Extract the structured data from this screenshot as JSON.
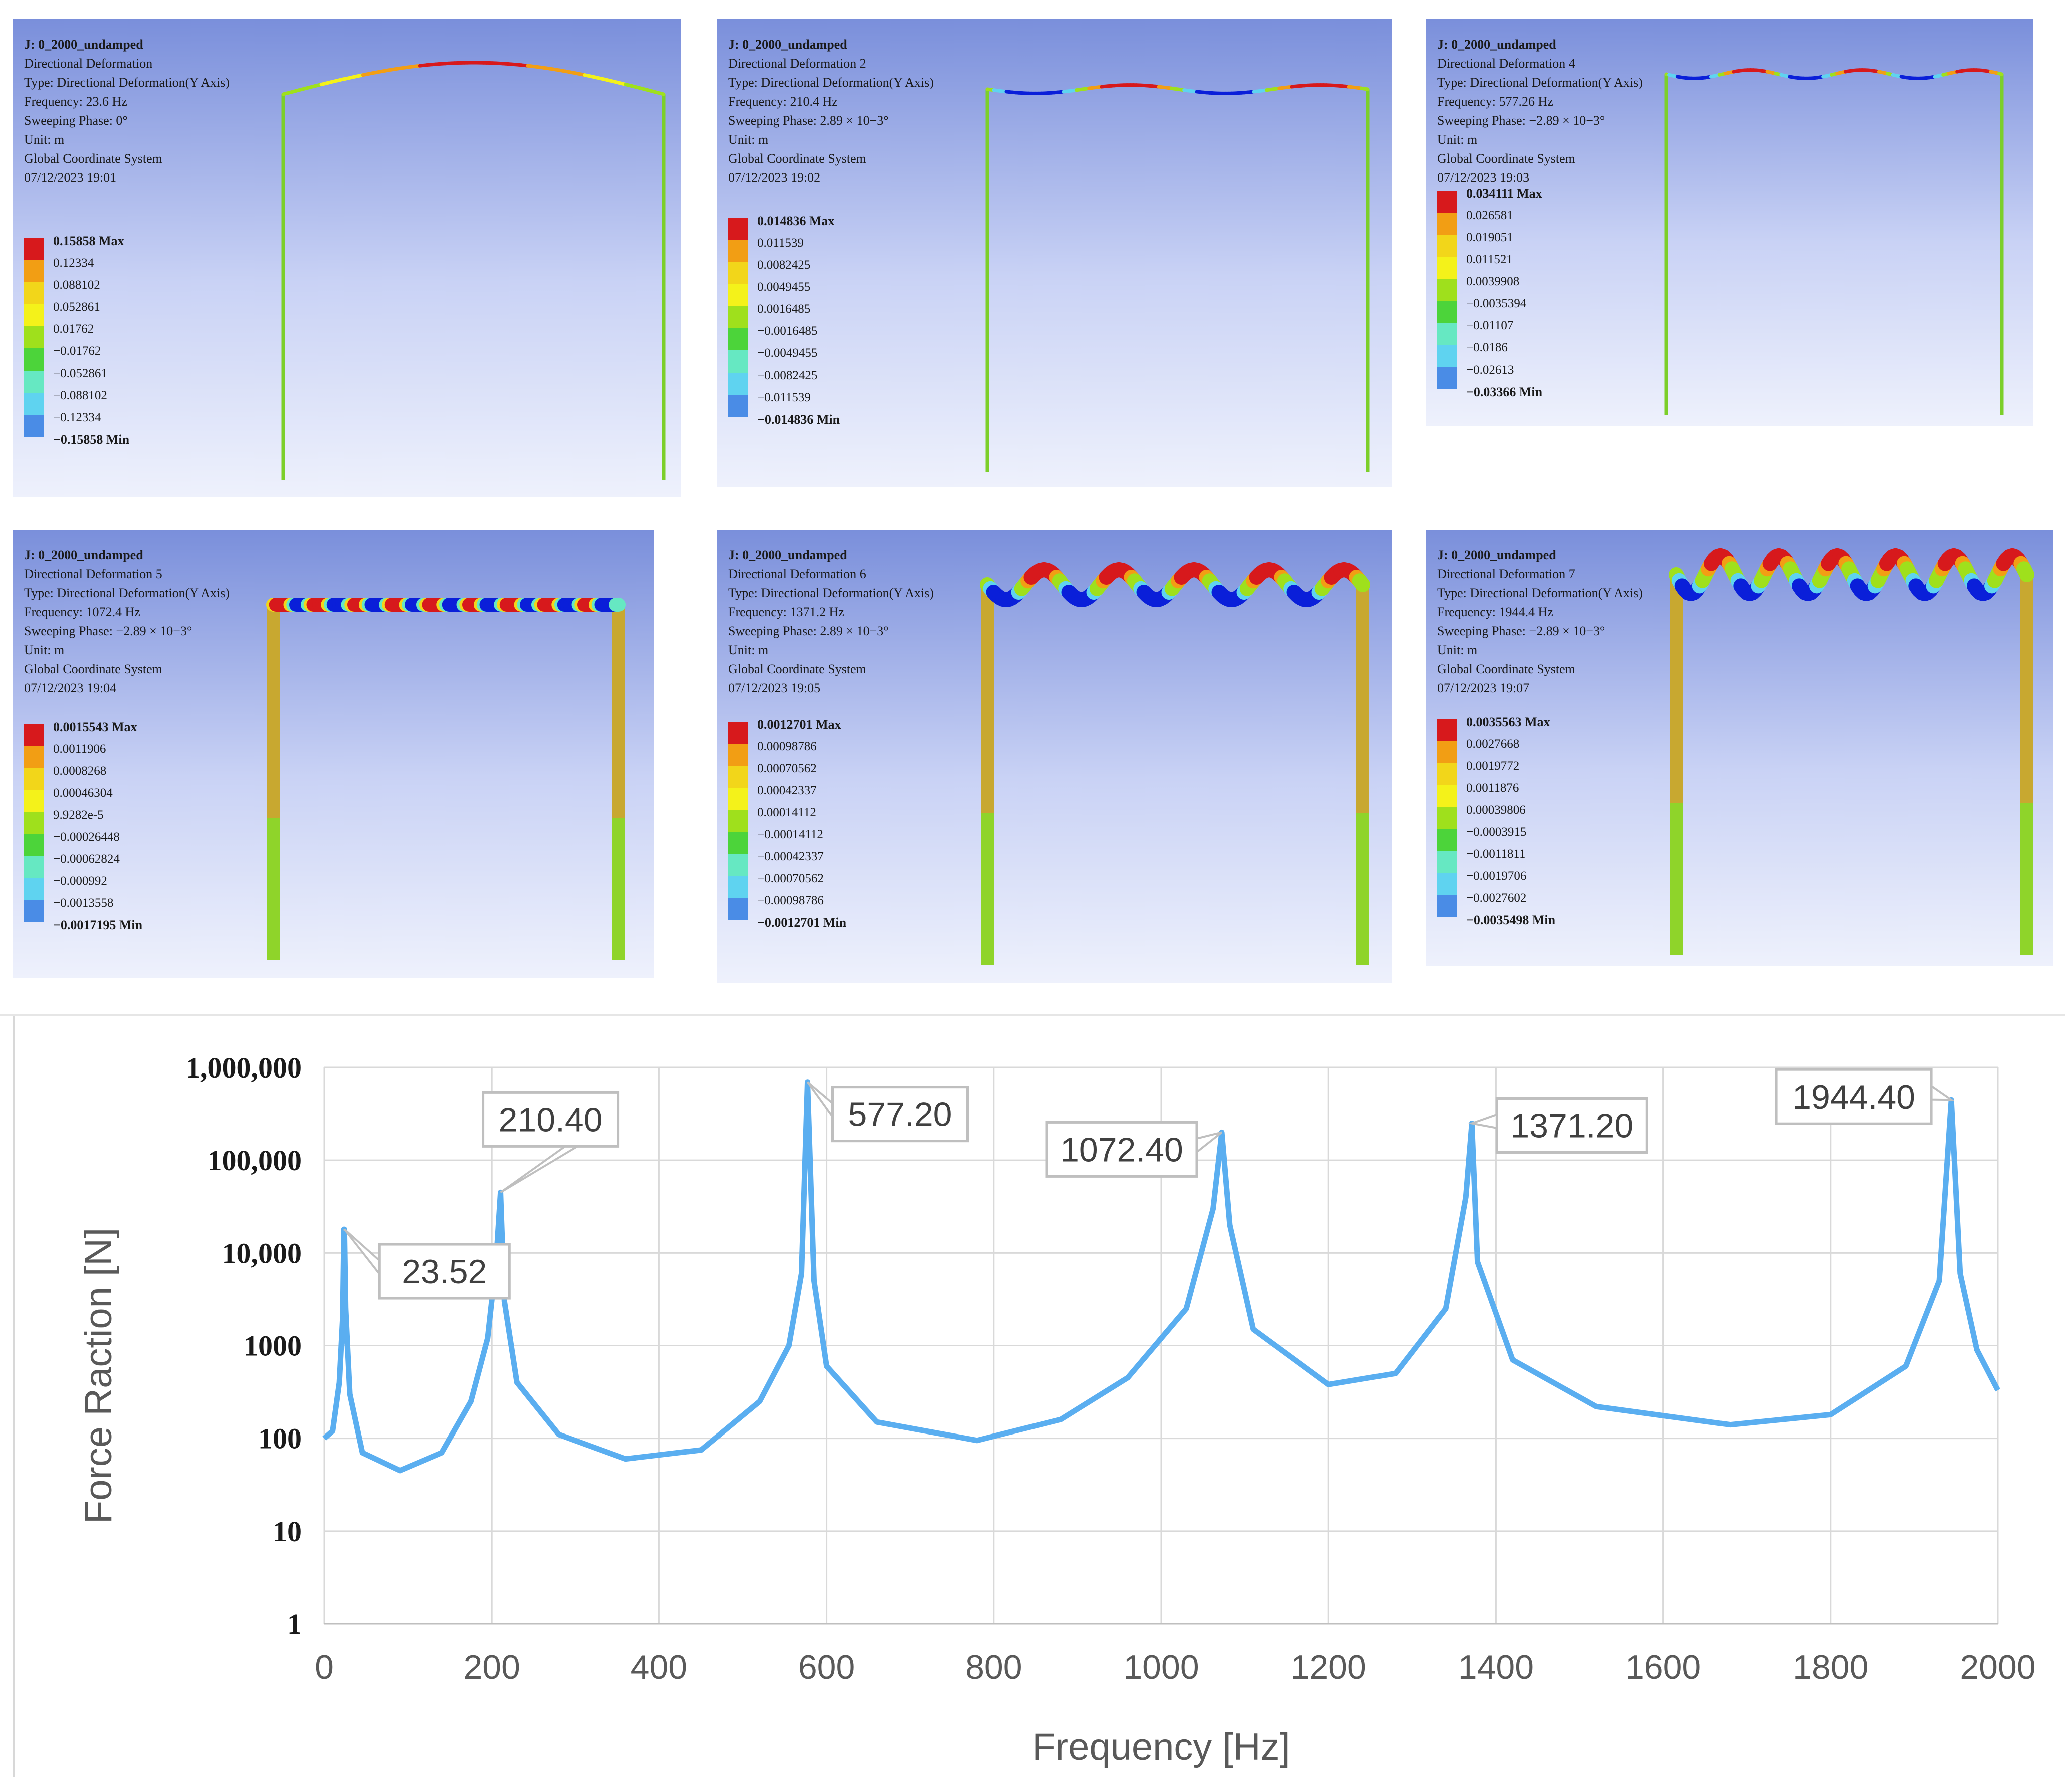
{
  "panels": [
    {
      "lines": [
        "J: 0_2000_undamped",
        "Directional Deformation",
        "Type: Directional Deformation(Y Axis)",
        "Frequency: 23.6 Hz",
        "Sweeping Phase: 0°",
        "Unit: m",
        "Global Coordinate System",
        "07/12/2023 19:01"
      ],
      "legend": [
        "0.15858 Max",
        "0.12334",
        "0.088102",
        "0.052861",
        "0.01762",
        "−0.01762",
        "−0.052861",
        "−0.088102",
        "−0.12334",
        "−0.15858 Min"
      ]
    },
    {
      "lines": [
        "J: 0_2000_undamped",
        "Directional Deformation 2",
        "Type: Directional Deformation(Y Axis)",
        "Frequency: 210.4 Hz",
        "Sweeping Phase: 2.89 × 10−3°",
        "Unit: m",
        "Global Coordinate System",
        "07/12/2023 19:02"
      ],
      "legend": [
        "0.014836 Max",
        "0.011539",
        "0.0082425",
        "0.0049455",
        "0.0016485",
        "−0.0016485",
        "−0.0049455",
        "−0.0082425",
        "−0.011539",
        "−0.014836 Min"
      ]
    },
    {
      "lines": [
        "J: 0_2000_undamped",
        "Directional Deformation 4",
        "Type: Directional Deformation(Y Axis)",
        "Frequency: 577.26 Hz",
        "Sweeping Phase: −2.89 × 10−3°",
        "Unit: m",
        "Global Coordinate System",
        "07/12/2023 19:03"
      ],
      "legend": [
        "0.034111 Max",
        "0.026581",
        "0.019051",
        "0.011521",
        "0.0039908",
        "−0.0035394",
        "−0.01107",
        "−0.0186",
        "−0.02613",
        "−0.03366 Min"
      ]
    },
    {
      "lines": [
        "J: 0_2000_undamped",
        "Directional Deformation 5",
        "Type: Directional Deformation(Y Axis)",
        "Frequency: 1072.4 Hz",
        "Sweeping Phase: −2.89 × 10−3°",
        "Unit: m",
        "Global Coordinate System",
        "07/12/2023 19:04"
      ],
      "legend": [
        "0.0015543 Max",
        "0.0011906",
        "0.0008268",
        "0.00046304",
        "9.9282e-5",
        "−0.00026448",
        "−0.00062824",
        "−0.000992",
        "−0.0013558",
        "−0.0017195 Min"
      ]
    },
    {
      "lines": [
        "J: 0_2000_undamped",
        "Directional Deformation 6",
        "Type: Directional Deformation(Y Axis)",
        "Frequency: 1371.2 Hz",
        "Sweeping Phase: 2.89 × 10−3°",
        "Unit: m",
        "Global Coordinate System",
        "07/12/2023 19:05"
      ],
      "legend": [
        "0.0012701 Max",
        "0.00098786",
        "0.00070562",
        "0.00042337",
        "0.00014112",
        "−0.00014112",
        "−0.00042337",
        "−0.00070562",
        "−0.00098786",
        "−0.0012701 Min"
      ]
    },
    {
      "lines": [
        "J: 0_2000_undamped",
        "Directional Deformation 7",
        "Type: Directional Deformation(Y Axis)",
        "Frequency: 1944.4 Hz",
        "Sweeping Phase: −2.89 × 10−3°",
        "Unit: m",
        "Global Coordinate System",
        "07/12/2023 19:07"
      ],
      "legend": [
        "0.0035563 Max",
        "0.0027668",
        "0.0019772",
        "0.0011876",
        "0.00039806",
        "−0.0003915",
        "−0.0011811",
        "−0.0019706",
        "−0.0027602",
        "−0.0035498 Min"
      ]
    }
  ],
  "legend_colors": [
    "#d7191c",
    "#f29e14",
    "#f2d61a",
    "#f4f21a",
    "#9fe01c",
    "#4cd43a",
    "#66e8c2",
    "#5fd3f0",
    "#4a8ce6",
    "#0a1fd9"
  ],
  "chart_data": {
    "type": "line",
    "title": "",
    "xlabel": "Frequency [Hz]",
    "ylabel": "Force Raction [N]",
    "xlim": [
      0,
      2000
    ],
    "ylim": [
      1,
      1000000
    ],
    "yscale": "log",
    "grid": true,
    "x_ticks": [
      0,
      200,
      400,
      600,
      800,
      1000,
      1200,
      1400,
      1600,
      1800,
      2000
    ],
    "x_tick_labels": [
      "0",
      "200",
      "400",
      "600",
      "800",
      "1000",
      "1200",
      "1400",
      "1600",
      "1800",
      "2000"
    ],
    "y_ticks": [
      1,
      10,
      100,
      1000,
      10000,
      100000,
      1000000
    ],
    "y_tick_labels": [
      "1",
      "10",
      "100",
      "1000",
      "10,000",
      "100,000",
      "1,000,000"
    ],
    "series": [
      {
        "name": "Force Reaction",
        "color": "#5aaef0",
        "x": [
          0,
          10,
          18,
          22,
          23.52,
          25,
          30,
          45,
          90,
          140,
          175,
          195,
          205,
          210.4,
          215,
          230,
          280,
          360,
          450,
          520,
          555,
          570,
          577.2,
          585,
          600,
          660,
          780,
          880,
          960,
          1030,
          1062,
          1072.4,
          1082,
          1110,
          1200,
          1280,
          1340,
          1364,
          1371.2,
          1378,
          1420,
          1520,
          1680,
          1800,
          1890,
          1930,
          1944.4,
          1955,
          1975,
          2000
        ],
        "y": [
          100,
          120,
          400,
          2000,
          18000,
          2500,
          300,
          70,
          45,
          70,
          250,
          1200,
          8000,
          45000,
          3000,
          400,
          110,
          60,
          75,
          250,
          1000,
          6000,
          700000,
          5000,
          600,
          150,
          95,
          160,
          450,
          2500,
          30000,
          200000,
          20000,
          1500,
          380,
          500,
          2500,
          40000,
          250000,
          8000,
          700,
          220,
          140,
          180,
          600,
          5000,
          450000,
          6000,
          900,
          330
        ]
      }
    ],
    "annotations": [
      {
        "label": "23.52",
        "x": 23.52,
        "y": 18000
      },
      {
        "label": "210.40",
        "x": 210.4,
        "y": 45000
      },
      {
        "label": "577.20",
        "x": 577.2,
        "y": 700000
      },
      {
        "label": "1072.40",
        "x": 1072.4,
        "y": 200000
      },
      {
        "label": "1371.20",
        "x": 1371.2,
        "y": 250000
      },
      {
        "label": "1944.40",
        "x": 1944.4,
        "y": 450000
      }
    ]
  }
}
